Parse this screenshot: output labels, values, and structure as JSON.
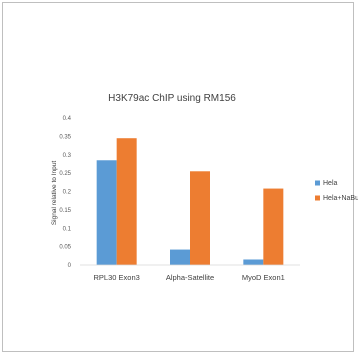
{
  "chart_data": {
    "type": "bar",
    "title": "H3K79ac ChIP using RM156",
    "xlabel": "",
    "ylabel": "Signal relative to Input",
    "categories": [
      "RPL30 Exon3",
      "Alpha-Satellite",
      "MyoD Exon1"
    ],
    "series": [
      {
        "name": "Hela",
        "values": [
          0.285,
          0.042,
          0.015
        ],
        "color": "#5b9bd5"
      },
      {
        "name": "Hela+NaBu",
        "values": [
          0.345,
          0.255,
          0.208
        ],
        "color": "#ed7d31"
      }
    ],
    "ylim": [
      0,
      0.4
    ],
    "yticks": [
      "0",
      "0.05",
      "0.1",
      "0.15",
      "0.2",
      "0.25",
      "0.3",
      "0.35",
      "0.4"
    ],
    "grid": false,
    "legend_position": "right"
  }
}
